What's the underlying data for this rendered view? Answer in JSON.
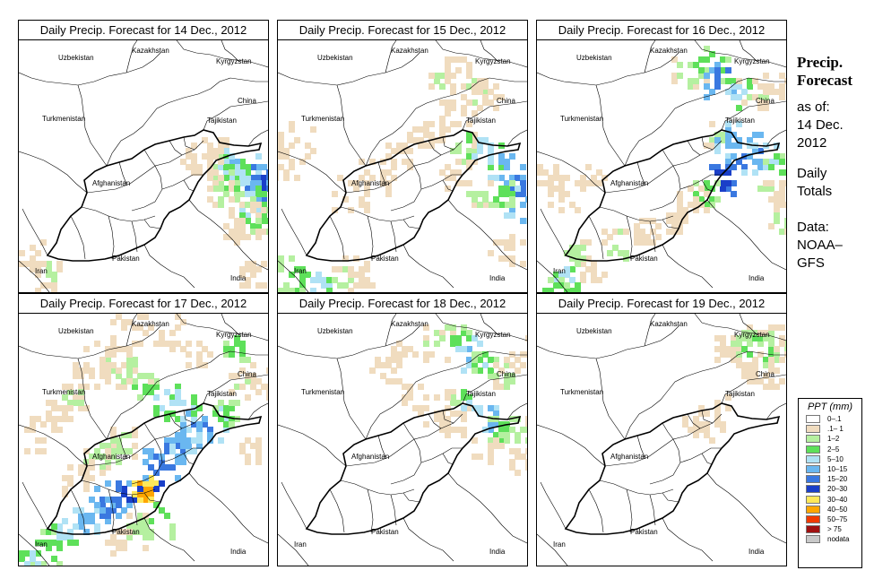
{
  "panels": [
    {
      "title": "Daily Precip. Forecast for  14 Dec., 2012"
    },
    {
      "title": "Daily Precip. Forecast for  15 Dec., 2012"
    },
    {
      "title": "Daily Precip. Forecast for  16 Dec., 2012"
    },
    {
      "title": "Daily Precip. Forecast for  17 Dec., 2012"
    },
    {
      "title": "Daily Precip. Forecast for  18 Dec., 2012"
    },
    {
      "title": "Daily Precip. Forecast for  19 Dec., 2012"
    }
  ],
  "countries": [
    "Uzbekistan",
    "Kazakhstan",
    "Kyrgyzstan",
    "China",
    "Turkmenistan",
    "Tajikistan",
    "Afghanistan",
    "Iran",
    "Pakistan",
    "India"
  ],
  "sidebar": {
    "title_line1": "Precip.",
    "title_line2": "Forecast",
    "asof_line1": "as of:",
    "asof_line2": "14 Dec.",
    "asof_line3": "2012",
    "daily_line1": "Daily",
    "daily_line2": "Totals",
    "data_line1": "Data:",
    "data_line2": "NOAA–",
    "data_line3": "GFS"
  },
  "legend": {
    "title": "PPT (mm)",
    "items": [
      {
        "label": "0–.1",
        "color": "#ffffff"
      },
      {
        "label": ".1– 1",
        "color": "#f0dcbf"
      },
      {
        "label": "1–2",
        "color": "#b5f0a0"
      },
      {
        "label": "2–5",
        "color": "#5ee05a"
      },
      {
        "label": "5–10",
        "color": "#b0e2f5"
      },
      {
        "label": "10–15",
        "color": "#6ab7f0"
      },
      {
        "label": "15–20",
        "color": "#3a78e0"
      },
      {
        "label": "20–30",
        "color": "#1a3fc8"
      },
      {
        "label": "30–40",
        "color": "#ffe85a"
      },
      {
        "label": "40–50",
        "color": "#ffa600"
      },
      {
        "label": "50–75",
        "color": "#f03a00"
      },
      {
        "label": "> 75",
        "color": "#a01010"
      },
      {
        "label": "nodata",
        "color": "#c8c8c8"
      }
    ]
  }
}
